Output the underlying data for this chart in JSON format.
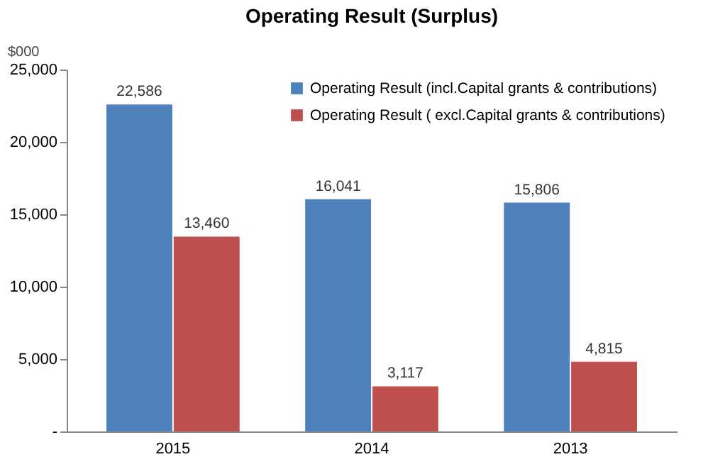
{
  "chart_data": {
    "type": "bar",
    "title": "Operating Result (Surplus)",
    "ylabel": "$000",
    "categories": [
      "2015",
      "2014",
      "2013"
    ],
    "series": [
      {
        "name": "Operating Result (incl.Capital grants & contributions)",
        "color": "#4f81bd",
        "values": [
          22586,
          16041,
          15806
        ],
        "value_labels": [
          "22,586",
          "16,041",
          "15,806"
        ]
      },
      {
        "name": "Operating Result ( excl.Capital grants & contributions)",
        "color": "#c0504d",
        "values": [
          13460,
          3117,
          4815
        ],
        "value_labels": [
          "13,460",
          "3,117",
          "4,815"
        ]
      }
    ],
    "ylim": [
      0,
      25000
    ],
    "yticks": [
      {
        "value": 0,
        "label": "-"
      },
      {
        "value": 5000,
        "label": "5,000"
      },
      {
        "value": 10000,
        "label": "10,000"
      },
      {
        "value": 15000,
        "label": "15,000"
      },
      {
        "value": 20000,
        "label": "20,000"
      },
      {
        "value": 25000,
        "label": "25,000"
      }
    ],
    "grid": false,
    "legend": "top right"
  }
}
